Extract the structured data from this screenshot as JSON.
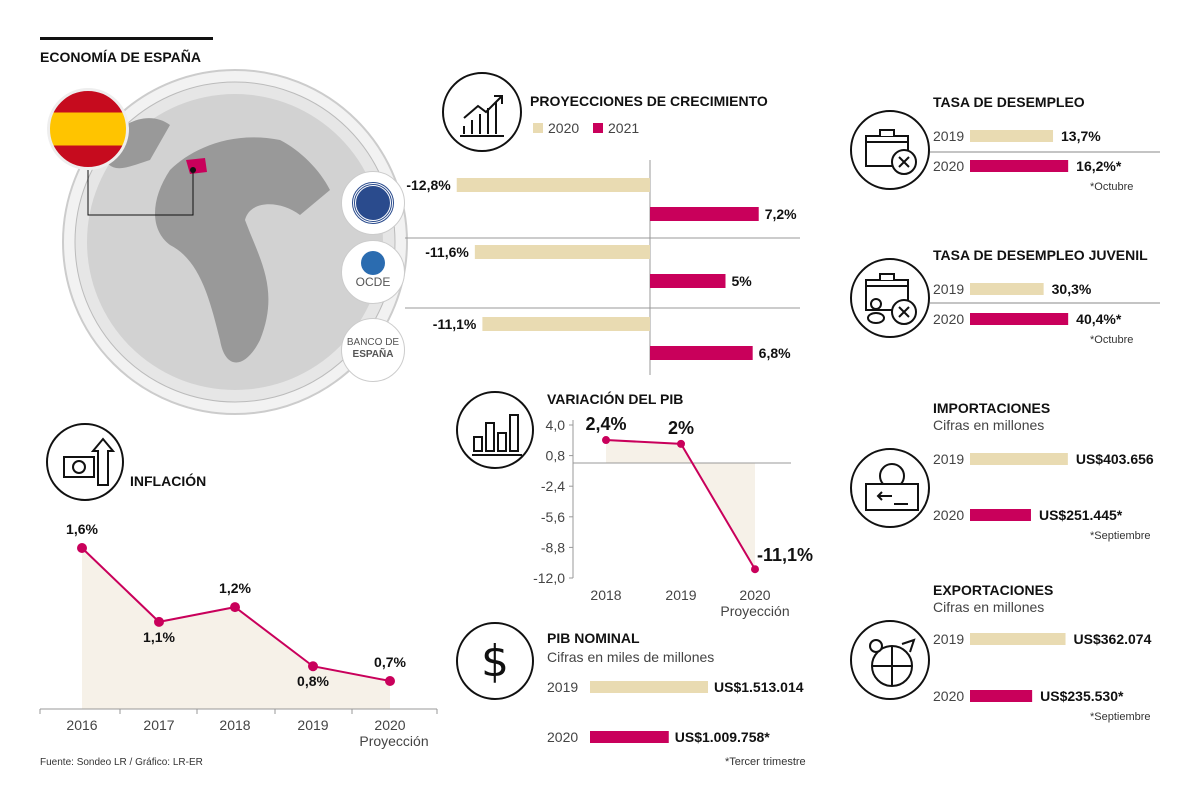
{
  "title": "ECONOMÍA DE ESPAÑA",
  "source": "Fuente: Sondeo LR / Gráfico: LR-ER",
  "colors": {
    "beige": "#e9dbb2",
    "magenta": "#c9005b",
    "area": "#f6f1e8"
  },
  "logos": {
    "imf": "FONDO MONETARIO INTERNACIONAL",
    "ocde": "OCDE",
    "bde": [
      "BANCO DE",
      "ESPAÑA"
    ]
  },
  "chart_data": [
    {
      "id": "proyecciones",
      "type": "bar",
      "title": "PROYECCIONES DE CRECIMIENTO",
      "legend": [
        "2020",
        "2021"
      ],
      "categories": [
        "FMI",
        "OCDE",
        "Banco de España"
      ],
      "series": [
        {
          "name": "2020",
          "values": [
            -12.8,
            -11.6,
            -11.1
          ],
          "labels": [
            "-12,8%",
            "-11,6%",
            "-11,1%"
          ]
        },
        {
          "name": "2021",
          "values": [
            7.2,
            5,
            6.8
          ],
          "labels": [
            "7,2%",
            "5%",
            "6,8%"
          ]
        }
      ]
    },
    {
      "id": "desempleo",
      "type": "bar",
      "title": "TASA DE DESEMPLEO",
      "categories": [
        "2019",
        "2020"
      ],
      "values": [
        13.7,
        16.2
      ],
      "labels": [
        "13,7%",
        "16,2%*"
      ],
      "note": "*Octubre"
    },
    {
      "id": "juvenil",
      "type": "bar",
      "title": "TASA DE DESEMPLEO JUVENIL",
      "categories": [
        "2019",
        "2020"
      ],
      "values": [
        30.3,
        40.4
      ],
      "labels": [
        "30,3%",
        "40,4%*"
      ],
      "note": "*Octubre"
    },
    {
      "id": "importaciones",
      "type": "bar",
      "title": "IMPORTACIONES",
      "subtitle": "Cifras en millones",
      "categories": [
        "2019",
        "2020"
      ],
      "values": [
        403656,
        251445
      ],
      "labels": [
        "US$403.656",
        "US$251.445*"
      ],
      "note": "*Septiembre"
    },
    {
      "id": "exportaciones",
      "type": "bar",
      "title": "EXPORTACIONES",
      "subtitle": "Cifras en millones",
      "categories": [
        "2019",
        "2020"
      ],
      "values": [
        362074,
        235530
      ],
      "labels": [
        "US$362.074",
        "US$235.530*"
      ],
      "note": "*Septiembre"
    },
    {
      "id": "pib_nominal",
      "type": "bar",
      "title": "PIB NOMINAL",
      "subtitle": "Cifras en miles de millones",
      "categories": [
        "2019",
        "2020"
      ],
      "values": [
        1513014,
        1009758
      ],
      "labels": [
        "US$1.513.014",
        "US$1.009.758*"
      ],
      "note": "*Tercer trimestre"
    },
    {
      "id": "variacion_pib",
      "type": "line",
      "title": "VARIACIÓN DEL PIB",
      "x": [
        "2018",
        "2019",
        "2020"
      ],
      "x_sub": "Proyección",
      "y": [
        2.4,
        2,
        -11.1
      ],
      "labels": [
        "2,4%",
        "2%",
        "-11,1%"
      ],
      "ylim": [
        -12,
        4
      ],
      "yticks": [
        "4,0",
        "0,8",
        "-2,4",
        "-5,6",
        "-8,8",
        "-12,0"
      ]
    },
    {
      "id": "inflacion",
      "type": "line",
      "title": "INFLACIÓN",
      "x": [
        "2016",
        "2017",
        "2018",
        "2019",
        "2020"
      ],
      "x_sub": "Proyección",
      "y": [
        1.6,
        1.1,
        1.2,
        0.8,
        0.7
      ],
      "labels": [
        "1,6%",
        "1,1%",
        "1,2%",
        "0,8%",
        "0,7%"
      ]
    }
  ]
}
